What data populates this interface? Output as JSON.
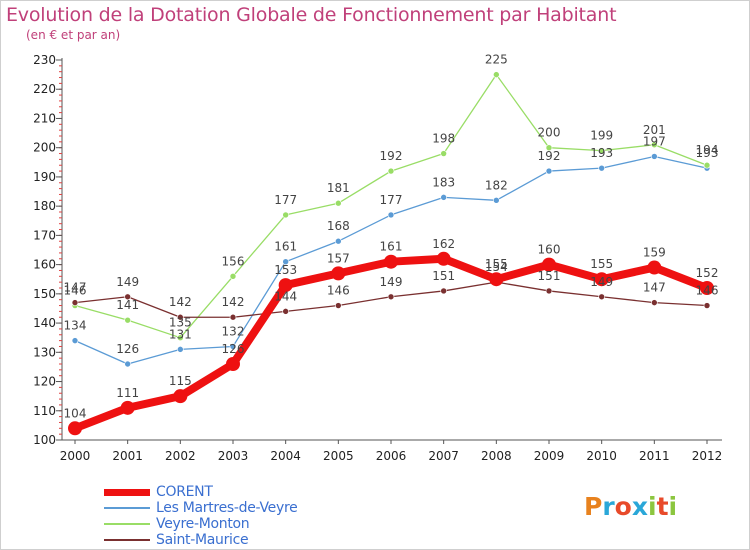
{
  "title": "Evolution de la Dotation Globale de Fonctionnement par Habitant",
  "subtitle": "(en € et par an)",
  "brand": {
    "text": "Proxiti",
    "letter_colors": [
      "#e8821e",
      "#2aa7d8",
      "#e84a2a",
      "#2aa7d8",
      "#8cc63f",
      "#e84a2a",
      "#8cc63f"
    ]
  },
  "chart_data": {
    "type": "line",
    "title": "Evolution de la Dotation Globale de Fonctionnement par Habitant",
    "subtitle": "(en € et par an)",
    "xlabel": "",
    "ylabel": "",
    "x": [
      "2000",
      "2001",
      "2002",
      "2003",
      "2004",
      "2005",
      "2006",
      "2007",
      "2008",
      "2009",
      "2010",
      "2011",
      "2012"
    ],
    "ylim": [
      100,
      230
    ],
    "yticks": [
      100,
      110,
      120,
      130,
      140,
      150,
      160,
      170,
      180,
      190,
      200,
      210,
      220,
      230
    ],
    "grid": false,
    "legend": "bottom-left",
    "series": [
      {
        "name": "CORENT",
        "color": "#ee1111",
        "width": "thick",
        "values": [
          104,
          111,
          115,
          126,
          153,
          157,
          161,
          162,
          155,
          160,
          155,
          159,
          152
        ]
      },
      {
        "name": "Les Martres-de-Veyre",
        "color": "#5b9bd5",
        "width": "thin",
        "values": [
          134,
          126,
          131,
          132,
          161,
          168,
          177,
          183,
          182,
          192,
          193,
          197,
          193
        ]
      },
      {
        "name": "Veyre-Monton",
        "color": "#99dd66",
        "width": "thin",
        "values": [
          146,
          141,
          135,
          156,
          177,
          181,
          192,
          198,
          225,
          200,
          199,
          201,
          194
        ]
      },
      {
        "name": "Saint-Maurice",
        "color": "#7a3030",
        "width": "thin",
        "values": [
          147,
          149,
          142,
          142,
          144,
          146,
          149,
          151,
          154,
          151,
          149,
          147,
          146
        ]
      }
    ]
  }
}
